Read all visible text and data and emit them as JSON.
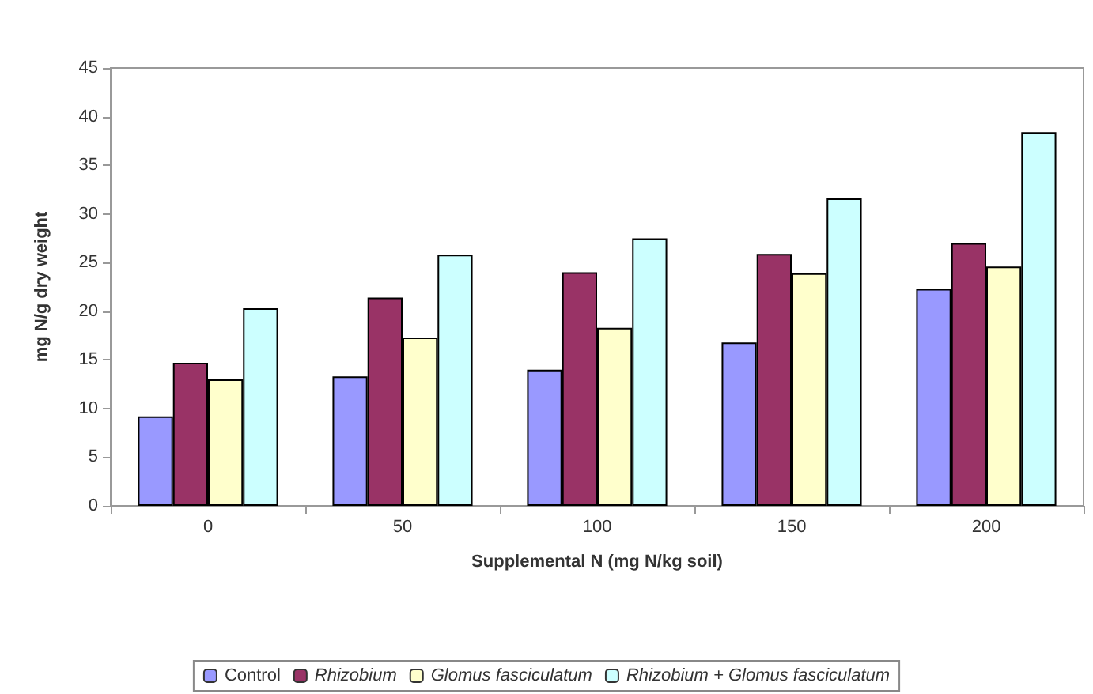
{
  "chart_data": {
    "type": "bar",
    "xlabel": "Supplemental N (mg N/kg soil)",
    "ylabel": "mg N/g dry weight",
    "categories": [
      "0",
      "50",
      "100",
      "150",
      "200"
    ],
    "series": [
      {
        "name": "Control",
        "color": "#9999ff",
        "values": [
          9.2,
          13.3,
          14,
          16.8,
          22.3
        ]
      },
      {
        "name": "Rhizobium",
        "color": "#993366",
        "values": [
          14.7,
          21.4,
          24,
          25.9,
          27
        ]
      },
      {
        "name": "Glomus fasciculatum",
        "color": "#ffffcc",
        "values": [
          13,
          17.3,
          18.3,
          23.9,
          24.6
        ]
      },
      {
        "name": "Rhizobium + Glomus fasciculatum",
        "color": "#ccffff",
        "values": [
          20.3,
          25.8,
          27.5,
          31.6,
          38.4
        ]
      }
    ],
    "ylim": [
      0,
      45
    ],
    "yticks": [
      0,
      5,
      10,
      15,
      20,
      25,
      30,
      35,
      40,
      45
    ],
    "grid": false,
    "legend": "bottom"
  }
}
